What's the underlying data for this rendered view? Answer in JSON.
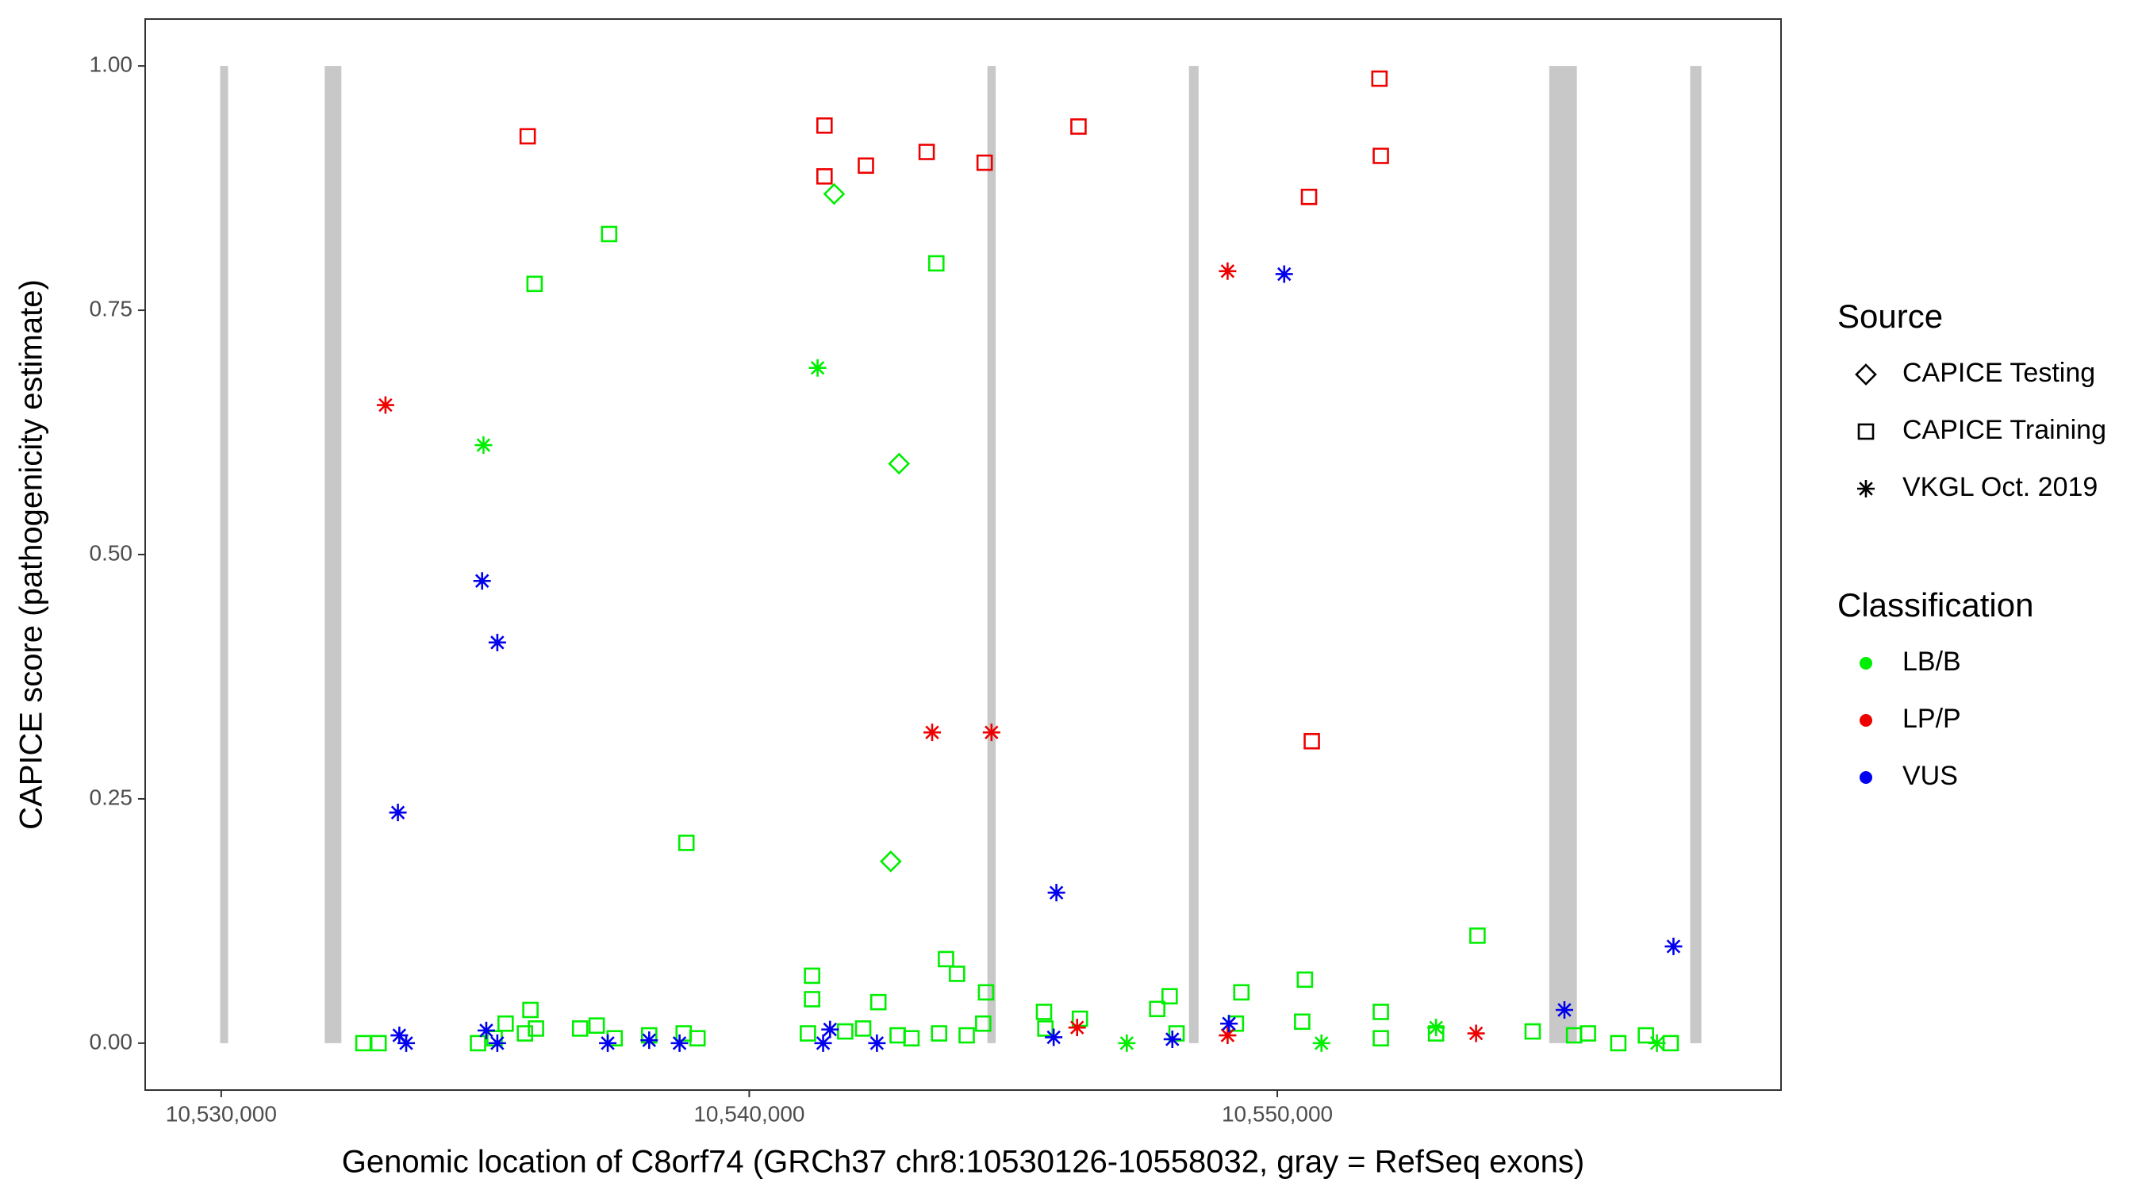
{
  "chart_data": {
    "type": "scatter",
    "x_label": "Genomic location of C8orf74 (GRCh37 chr8:10530126-10558032, gray = RefSeq exons)",
    "y_label": "CAPICE score (pathogenicity estimate)",
    "xlim": [
      10528560,
      10559540
    ],
    "ylim": [
      -0.048,
      1.048
    ],
    "xticks": [
      {
        "value": 10530000,
        "label": "10,530,000"
      },
      {
        "value": 10540000,
        "label": "10,540,000"
      },
      {
        "value": 10550000,
        "label": "10,550,000"
      }
    ],
    "yticks": [
      {
        "value": 0,
        "label": "0.00"
      },
      {
        "value": 0.25,
        "label": "0.25"
      },
      {
        "value": 0.5,
        "label": "0.50"
      },
      {
        "value": 0.75,
        "label": "0.75"
      },
      {
        "value": 1,
        "label": "1.00"
      }
    ],
    "grid": false,
    "exon_color": "#c8c8c8",
    "exons": [
      [
        10529980,
        10530130
      ],
      [
        10531960,
        10532275
      ],
      [
        10544510,
        10544667
      ],
      [
        10548327,
        10548510
      ],
      [
        10555150,
        10555673
      ],
      [
        10557820,
        10558032
      ]
    ],
    "source_title": "Source",
    "class_title": "Classification",
    "sources": [
      {
        "name": "CAPICE Testing",
        "shape": "diamond"
      },
      {
        "name": "CAPICE Training",
        "shape": "square"
      },
      {
        "name": "VKGL Oct. 2019",
        "shape": "asterisk"
      }
    ],
    "classes": [
      {
        "name": "LB/B",
        "color": "#00ee00"
      },
      {
        "name": "LP/P",
        "color": "#ee0000"
      },
      {
        "name": "VUS",
        "color": "#0000ee"
      }
    ],
    "series": [
      {
        "source": 1,
        "class": 0,
        "x": [
          10535935,
          10537346,
          10543543,
          10538810,
          10553791,
          10541190,
          10541190,
          10543726,
          10543935,
          10550523,
          10535856,
          10542445,
          10544484,
          10545582,
          10547961,
          10549320,
          10551961,
          10532693,
          10532980,
          10534863,
          10535177,
          10535386,
          10535752,
          10535961,
          10536797,
          10537111,
          10537451,
          10538105,
          10538758,
          10539020,
          10541111,
          10541817,
          10542157,
          10542811,
          10543072,
          10543595,
          10544118,
          10544431,
          10545608,
          10546262,
          10547726,
          10548092,
          10549216,
          10550471,
          10551961,
          10553007,
          10554837,
          10555621,
          10555883,
          10556458,
          10556981,
          10557451
        ],
        "y": [
          0.777,
          0.828,
          0.798,
          0.205,
          0.11,
          0.069,
          0.045,
          0.086,
          0.071,
          0.065,
          0.034,
          0.042,
          0.052,
          0.032,
          0.048,
          0.052,
          0.032,
          0,
          0,
          0,
          0.005,
          0.02,
          0.01,
          0.015,
          0.015,
          0.018,
          0.005,
          0.008,
          0.01,
          0.005,
          0.01,
          0.012,
          0.015,
          0.008,
          0.005,
          0.01,
          0.008,
          0.02,
          0.015,
          0.025,
          0.035,
          0.01,
          0.02,
          0.022,
          0.005,
          0.01,
          0.012,
          0.008,
          0.01,
          0,
          0.008,
          0
        ]
      },
      {
        "source": 1,
        "class": 1,
        "x": [
          10535804,
          10541425,
          10541425,
          10542209,
          10543360,
          10544458,
          10546235,
          10550601,
          10551935,
          10551961,
          10550654
        ],
        "y": [
          0.928,
          0.939,
          0.887,
          0.898,
          0.912,
          0.901,
          0.938,
          0.866,
          0.987,
          0.908,
          0.309
        ]
      },
      {
        "source": 0,
        "class": 0,
        "x": [
          10541608,
          10542837,
          10542680
        ],
        "y": [
          0.869,
          0.593,
          0.186
        ]
      },
      {
        "source": 2,
        "class": 0,
        "x": [
          10534967,
          10541294,
          10547150,
          10550837,
          10553007,
          10557190
        ],
        "y": [
          0.612,
          0.691,
          0,
          0,
          0.016,
          0
        ]
      },
      {
        "source": 2,
        "class": 1,
        "x": [
          10533111,
          10543464,
          10544588,
          10549059,
          10546209,
          10553765,
          10549059
        ],
        "y": [
          0.653,
          0.318,
          0.318,
          0.79,
          0.016,
          0.01,
          0.008
        ]
      },
      {
        "source": 2,
        "class": 2,
        "x": [
          10533346,
          10534941,
          10535229,
          10545817,
          10550131,
          10557503,
          10555438,
          10533373,
          10533503,
          10535020,
          10535229,
          10537320,
          10538105,
          10538680,
          10541399,
          10541530,
          10542418,
          10545765,
          10548013,
          10549085
        ],
        "y": [
          0.236,
          0.473,
          0.41,
          0.154,
          0.787,
          0.099,
          0.034,
          0.008,
          0,
          0.013,
          0,
          0,
          0.003,
          0,
          0,
          0.014,
          0,
          0.006,
          0.004,
          0.02
        ]
      }
    ]
  }
}
